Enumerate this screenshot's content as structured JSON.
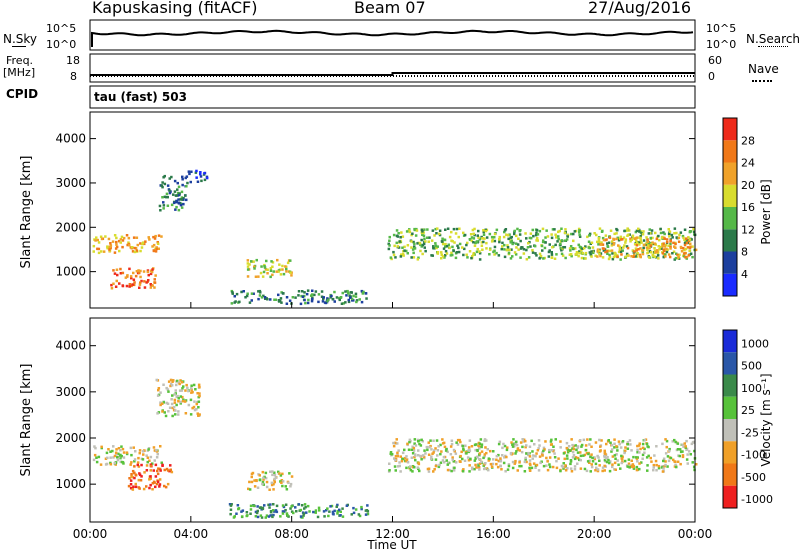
{
  "header": {
    "station": "Kapuskasing (fitACF)",
    "beam": "Beam 07",
    "date": "27/Aug/2016"
  },
  "status_panels": {
    "nsky": {
      "label": "N.Sky",
      "ticks": [
        "10^5",
        "10^0"
      ],
      "right_label": "N.Search",
      "right_ticks": [
        "10^5",
        "10^0"
      ]
    },
    "freq": {
      "label_line1": "Freq.",
      "label_line2": "[MHz]",
      "ticks": [
        "18",
        "8"
      ],
      "right_label": "Nave",
      "right_ticks": [
        "60",
        "0"
      ]
    },
    "cpid": {
      "label": "CPID",
      "text": "tau (fast) 503"
    }
  },
  "axes": {
    "ylabel": "Slant Range [km]",
    "xlabel": "Time UT",
    "yticks": [
      "1000",
      "2000",
      "3000",
      "4000"
    ],
    "xticks": [
      "00:00",
      "04:00",
      "08:00",
      "12:00",
      "16:00",
      "20:00",
      "00:00"
    ]
  },
  "power_scale": {
    "label": "Power [dB]",
    "ticks": [
      "4",
      "8",
      "12",
      "16",
      "20",
      "24",
      "28"
    ],
    "colors": [
      "#1a2bff",
      "#1c3f9e",
      "#2b7a4a",
      "#55b848",
      "#d8dc2e",
      "#f0a22a",
      "#f07818",
      "#ee2a1a"
    ]
  },
  "velocity_scale": {
    "label": "Velocity [m s⁻¹]",
    "ticks": [
      "1000",
      "500",
      "100",
      "25",
      "-25",
      "-100",
      "-500",
      "-1000"
    ],
    "colors": [
      "#1a2bd8",
      "#2a57a8",
      "#3a8a4a",
      "#57c23a",
      "#c0c0b8",
      "#f0a028",
      "#f07818",
      "#ee2020"
    ]
  },
  "chart_data": {
    "type": "heatmap",
    "x_range": [
      "00:00",
      "24:00"
    ],
    "y_range_km": [
      180,
      4600
    ],
    "panels": [
      {
        "name": "power",
        "regions": [
          {
            "t": [
              0.1,
              2.8
            ],
            "r": [
              1450,
              1850
            ],
            "level": "24"
          },
          {
            "t": [
              0.8,
              2.6
            ],
            "r": [
              650,
              1100
            ],
            "level": "28"
          },
          {
            "t": [
              2.7,
              3.8
            ],
            "r": [
              2400,
              3200
            ],
            "level": "12"
          },
          {
            "t": [
              3.8,
              4.6
            ],
            "r": [
              3000,
              3300
            ],
            "level": "8"
          },
          {
            "t": [
              6.2,
              8.0
            ],
            "r": [
              900,
              1300
            ],
            "level": "20"
          },
          {
            "t": [
              5.5,
              11.0
            ],
            "r": [
              300,
              600
            ],
            "level": "12"
          },
          {
            "t": [
              11.8,
              24.0
            ],
            "r": [
              1300,
              2000
            ],
            "level": "16"
          },
          {
            "t": [
              20.0,
              24.0
            ],
            "r": [
              1350,
              1800
            ],
            "level": "24"
          }
        ]
      },
      {
        "name": "velocity",
        "regions": [
          {
            "t": [
              0.1,
              2.8
            ],
            "r": [
              1450,
              1850
            ],
            "level": "-25"
          },
          {
            "t": [
              1.5,
              3.2
            ],
            "r": [
              900,
              1450
            ],
            "level": "-500"
          },
          {
            "t": [
              2.6,
              4.3
            ],
            "r": [
              2500,
              3300
            ],
            "level": "-25"
          },
          {
            "t": [
              6.2,
              8.0
            ],
            "r": [
              900,
              1300
            ],
            "level": "-25"
          },
          {
            "t": [
              5.5,
              11.0
            ],
            "r": [
              300,
              600
            ],
            "level": "100"
          },
          {
            "t": [
              11.8,
              24.0
            ],
            "r": [
              1300,
              2000
            ],
            "level": "-25"
          }
        ]
      }
    ]
  }
}
